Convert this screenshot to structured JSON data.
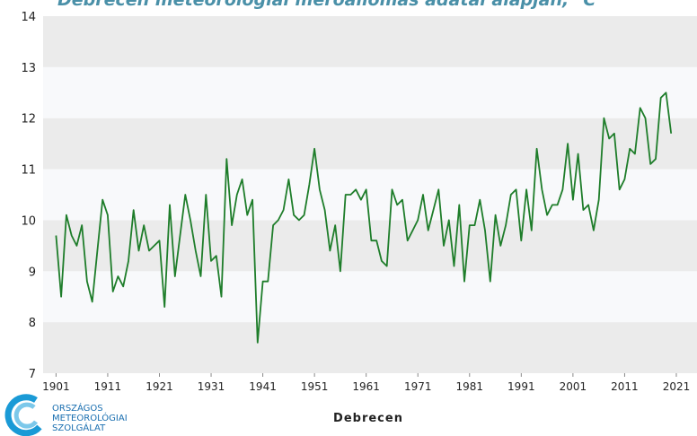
{
  "chart_data": {
    "type": "line",
    "title": "Debrecen meteorológiai mérőállomás adatai alapján, °C",
    "x_label": "Debrecen",
    "x": [
      1901,
      1902,
      1903,
      1904,
      1905,
      1906,
      1907,
      1908,
      1909,
      1910,
      1911,
      1912,
      1913,
      1914,
      1915,
      1916,
      1917,
      1918,
      1919,
      1920,
      1921,
      1922,
      1923,
      1924,
      1925,
      1926,
      1927,
      1928,
      1929,
      1930,
      1931,
      1932,
      1933,
      1934,
      1935,
      1936,
      1937,
      1938,
      1939,
      1940,
      1941,
      1942,
      1943,
      1944,
      1945,
      1946,
      1947,
      1948,
      1949,
      1950,
      1951,
      1952,
      1953,
      1954,
      1955,
      1956,
      1957,
      1958,
      1959,
      1960,
      1961,
      1962,
      1963,
      1964,
      1965,
      1966,
      1967,
      1968,
      1969,
      1970,
      1971,
      1972,
      1973,
      1974,
      1975,
      1976,
      1977,
      1978,
      1979,
      1980,
      1981,
      1982,
      1983,
      1984,
      1985,
      1986,
      1987,
      1988,
      1989,
      1990,
      1991,
      1992,
      1993,
      1994,
      1995,
      1996,
      1997,
      1998,
      1999,
      2000,
      2001,
      2002,
      2003,
      2004,
      2005,
      2006,
      2007,
      2008,
      2009,
      2010,
      2011,
      2012,
      2013,
      2014,
      2015,
      2016,
      2017,
      2018,
      2019,
      2020
    ],
    "series": [
      {
        "name": "Debrecen",
        "color": "#1e7d2a",
        "values": [
          9.7,
          8.5,
          10.1,
          9.7,
          9.5,
          9.9,
          8.8,
          8.4,
          9.4,
          10.4,
          10.1,
          8.6,
          8.9,
          8.7,
          9.2,
          10.2,
          9.4,
          9.9,
          9.4,
          9.5,
          9.6,
          8.3,
          10.3,
          8.9,
          9.7,
          10.5,
          10.0,
          9.4,
          8.9,
          10.5,
          9.2,
          9.3,
          8.5,
          11.2,
          9.9,
          10.5,
          10.8,
          10.1,
          10.4,
          7.6,
          8.8,
          8.8,
          9.9,
          10.0,
          10.2,
          10.8,
          10.1,
          10.0,
          10.1,
          10.7,
          11.4,
          10.6,
          10.2,
          9.4,
          9.9,
          9.0,
          10.5,
          10.5,
          10.6,
          10.4,
          10.6,
          9.6,
          9.6,
          9.2,
          9.1,
          10.6,
          10.3,
          10.4,
          9.6,
          9.8,
          10.0,
          10.5,
          9.8,
          10.2,
          10.6,
          9.5,
          10.0,
          9.1,
          10.3,
          8.8,
          9.9,
          9.9,
          10.4,
          9.8,
          8.8,
          10.1,
          9.5,
          9.9,
          10.5,
          10.6,
          9.6,
          10.6,
          9.8,
          11.4,
          10.6,
          10.1,
          10.3,
          10.3,
          10.6,
          11.5,
          10.4,
          11.3,
          10.2,
          10.3,
          9.8,
          10.4,
          12.0,
          11.6,
          11.7,
          10.6,
          10.8,
          11.4,
          11.3,
          12.2,
          12.0,
          11.1,
          11.2,
          12.4,
          12.5,
          11.7
        ]
      }
    ],
    "xlim": [
      1898.5,
      2025
    ],
    "xticks": [
      1901,
      1911,
      1921,
      1931,
      1941,
      1951,
      1961,
      1971,
      1981,
      1991,
      2001,
      2011,
      2021
    ],
    "ylim": [
      7,
      14
    ],
    "yticks": [
      7,
      8,
      9,
      10,
      11,
      12,
      13,
      14
    ],
    "grid": true
  },
  "logo": {
    "lines": [
      "ORSZÁGOS",
      "METEOROLÓGIAI",
      "SZOLGÁLAT"
    ]
  }
}
